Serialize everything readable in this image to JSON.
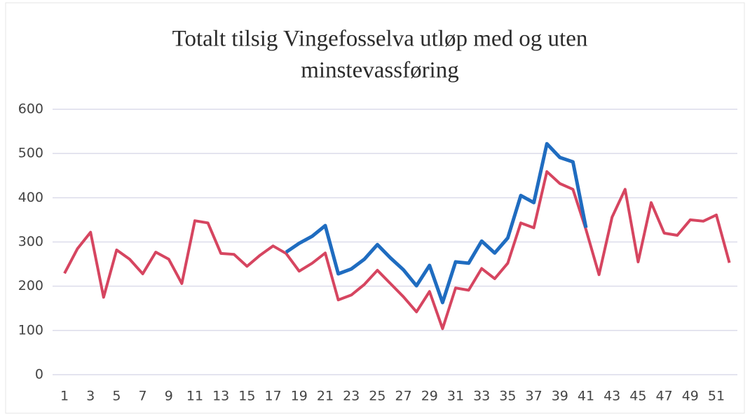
{
  "chart_data": {
    "type": "line",
    "title": [
      "Totalt tilsig Vingefosselva utløp med og uten",
      "minstevassføring"
    ],
    "categories": [
      1,
      null,
      3,
      null,
      5,
      null,
      7,
      null,
      9,
      null,
      11,
      null,
      13,
      null,
      15,
      null,
      17,
      null,
      19,
      null,
      21,
      null,
      23,
      null,
      25,
      null,
      27,
      null,
      29,
      null,
      31,
      null,
      33,
      null,
      35,
      null,
      37,
      null,
      39,
      null,
      41,
      null,
      43,
      null,
      45,
      null,
      47,
      null,
      49,
      null,
      51,
      null
    ],
    "series": [
      {
        "color": "#d64560",
        "values": [
          229,
          285,
          322,
          175,
          282,
          261,
          228,
          277,
          261,
          206,
          348,
          343,
          274,
          272,
          245,
          270,
          291,
          274,
          234,
          252,
          275,
          169,
          180,
          204,
          236,
          206,
          176,
          142,
          188,
          104,
          196,
          191,
          240,
          217,
          252,
          343,
          332,
          459,
          432,
          419,
          328,
          226,
          356,
          419,
          255,
          389,
          320,
          315,
          350,
          347,
          361,
          253
        ]
      },
      {
        "color": "#1f6cc0",
        "values": [
          null,
          null,
          null,
          null,
          null,
          null,
          null,
          null,
          null,
          null,
          null,
          null,
          null,
          null,
          null,
          null,
          null,
          277,
          297,
          313,
          337,
          228,
          239,
          261,
          294,
          264,
          237,
          201,
          247,
          163,
          255,
          252,
          302,
          275,
          309,
          405,
          389,
          522,
          491,
          481,
          332,
          null,
          null,
          null,
          null,
          null,
          null,
          null,
          null,
          null,
          null,
          null
        ]
      }
    ],
    "ylim": [
      0,
      600
    ],
    "yticks": [
      0,
      100,
      200,
      300,
      400,
      500,
      600
    ],
    "grid": true
  }
}
